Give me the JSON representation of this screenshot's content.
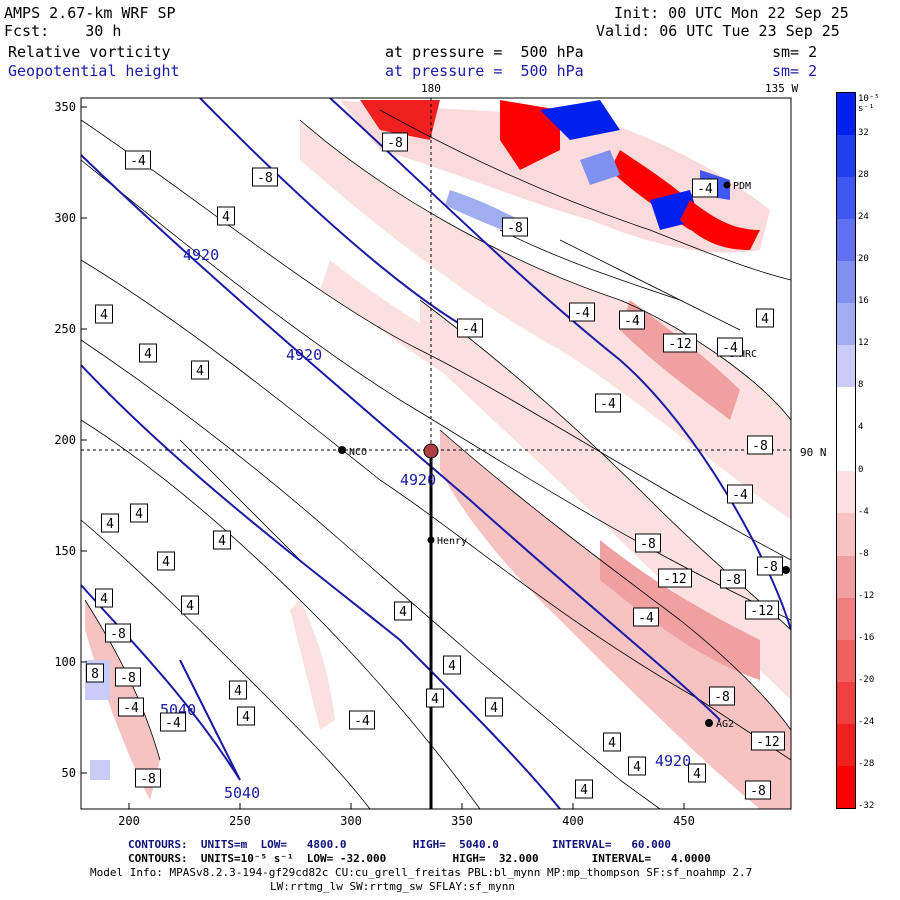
{
  "header": {
    "left_line1": "AMPS 2.67-km WRF SP",
    "left_line2": "Fcst:    30 h",
    "right_line1": "Init: 00 UTC Mon 22 Sep 25",
    "right_line2": "Valid: 06 UTC Tue 23 Sep 25",
    "field1_name": "Relative vorticity",
    "field1_level": "at pressure =  500 hPa",
    "field1_sm": "sm= 2",
    "field2_name": "Geopotential height",
    "field2_level": "at pressure =  500 hPa",
    "field2_sm": "sm= 2"
  },
  "map": {
    "top_lon_left": "180",
    "top_lon_right": "135 W",
    "right_lat": "90 N",
    "y_ticks": [
      "350",
      "300",
      "250",
      "200",
      "150",
      "100",
      "50"
    ],
    "x_ticks": [
      "200",
      "250",
      "300",
      "350",
      "400",
      "450"
    ],
    "stations": [
      {
        "name": "NCO"
      },
      {
        "name": "Henry"
      },
      {
        "name": "HRC"
      },
      {
        "name": "AG2"
      },
      {
        "name": "PDM"
      }
    ],
    "height_contour_labels": [
      "4920",
      "4920",
      "4920",
      "4920",
      "5040",
      "5040"
    ],
    "vorticity_labels": [
      "-4",
      "-8",
      "4",
      "-12",
      "8"
    ]
  },
  "colorbar": {
    "unit": "10⁻⁵ s⁻¹",
    "labels": [
      "32",
      "28",
      "24",
      "20",
      "16",
      "12",
      "8",
      "4",
      "0",
      "-4",
      "-8",
      "-12",
      "-16",
      "-20",
      "-24",
      "-28",
      "-32"
    ],
    "colors": [
      "#0020f0",
      "#2040f0",
      "#4058f0",
      "#6070f0",
      "#8090f0",
      "#a0aef0",
      "#c8ccf6",
      "#ffffff",
      "#ffffff",
      "#fbe0e0",
      "#f6c2c2",
      "#f0a0a0",
      "#f08080",
      "#f06060",
      "#f04040",
      "#f02020",
      "#ff0000"
    ]
  },
  "footer": {
    "line1": "CONTOURS:  UNITS=m  LOW=   4800.0          HIGH=  5040.0        INTERVAL=   60.000",
    "line2": "CONTOURS:  UNITS=10⁻⁵ s⁻¹  LOW= -32.000          HIGH=  32.000        INTERVAL=   4.0000",
    "line3": "Model Info: MPASv8.2.3-194-gf29cd82c CU:cu_grell_freitas PBL:bl_mynn MP:mp_thompson SF:sf_noahmp 2.7",
    "line4": "LW:rrtmg_lw SW:rrtmg_sw SFLAY:sf_mynn"
  }
}
